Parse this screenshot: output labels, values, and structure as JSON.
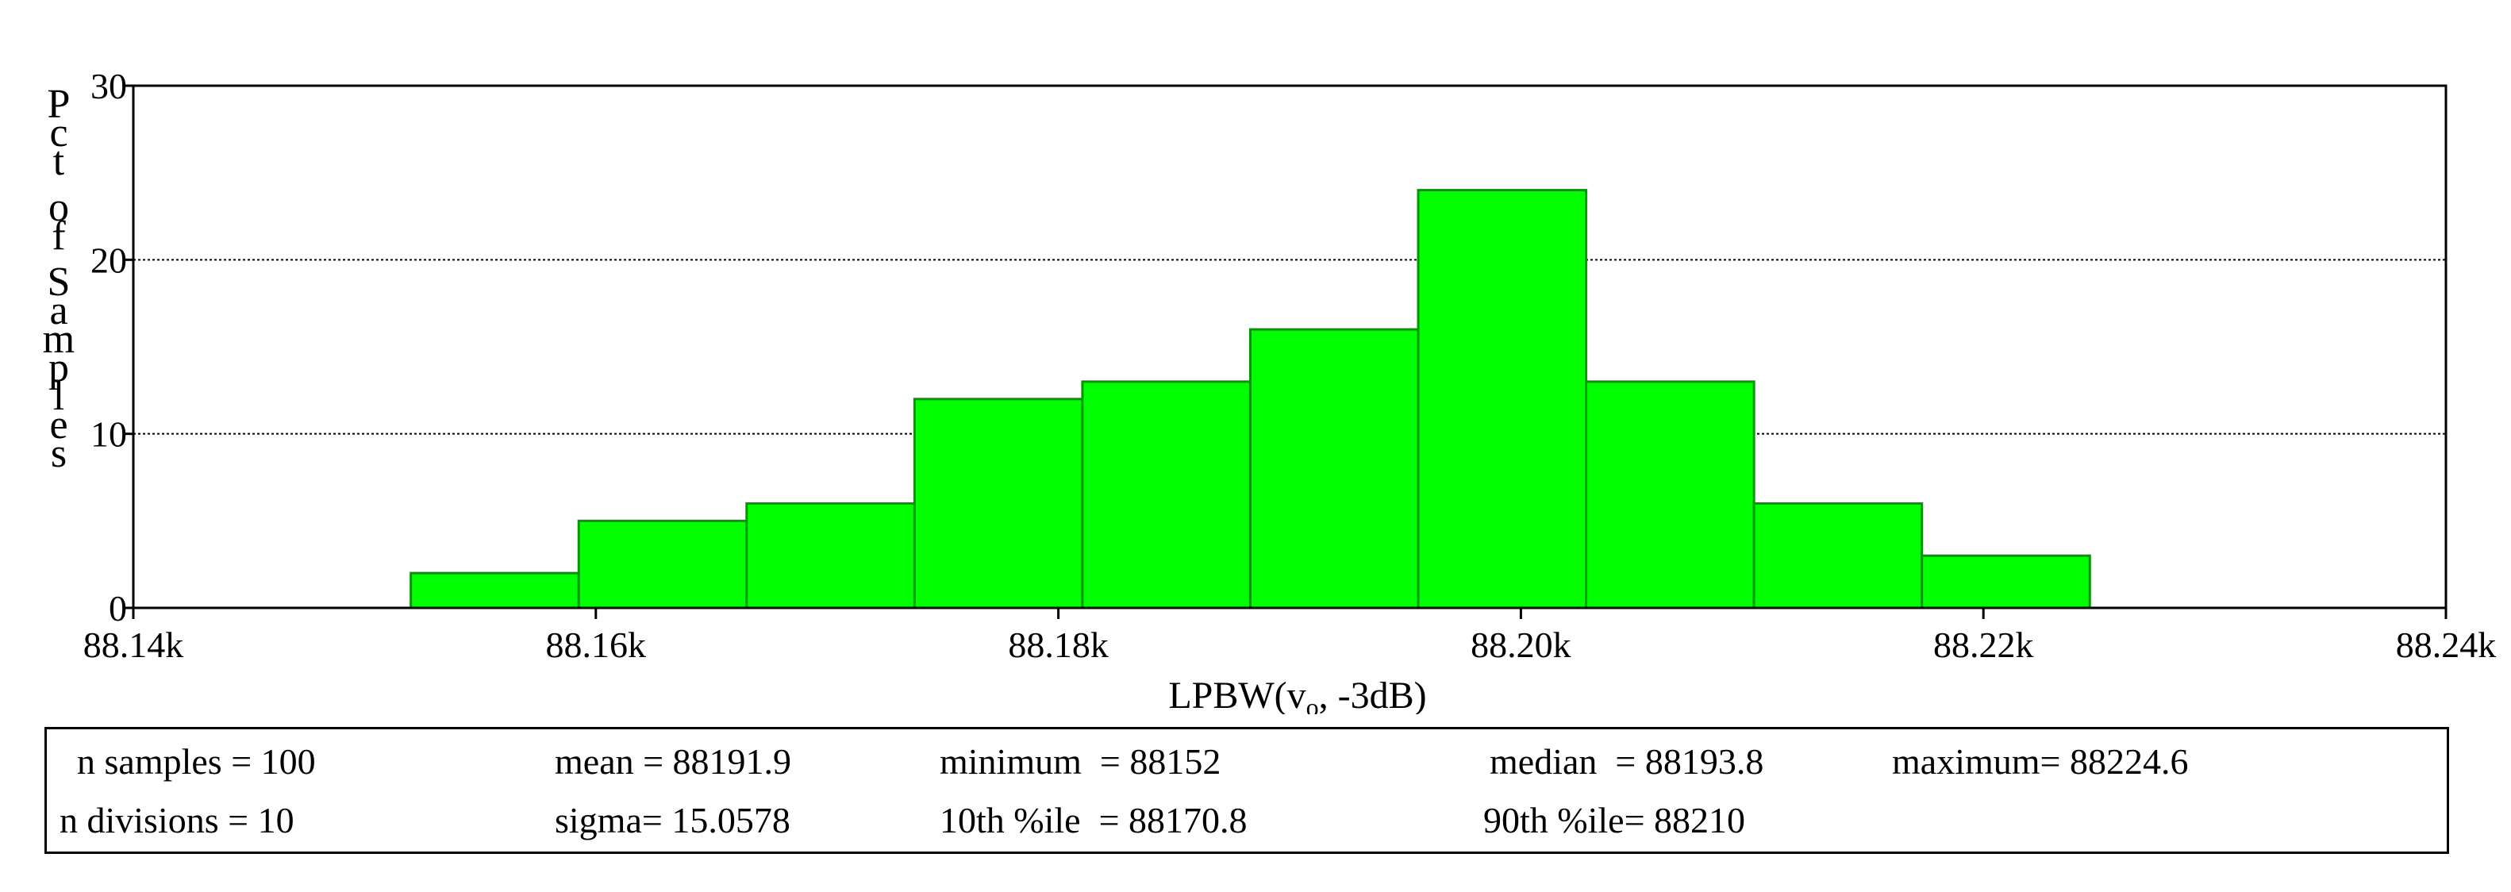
{
  "chart_data": {
    "type": "bar",
    "title": "",
    "xlabel": "LPBW(v",
    "xlabel_subscript": "o",
    "xlabel_suffix": ", -3dB)",
    "ylabel": "Pct of Samples",
    "xlim": [
      88140,
      88240
    ],
    "ylim": [
      0,
      30
    ],
    "x_ticks": [
      88140,
      88160,
      88180,
      88200,
      88220,
      88240
    ],
    "x_tick_labels": [
      "88.14k",
      "88.16k",
      "88.18k",
      "88.20k",
      "88.22k",
      "88.24k"
    ],
    "y_ticks": [
      0,
      10,
      20,
      30
    ],
    "y_tick_labels": [
      "0",
      "10",
      "20",
      "30"
    ],
    "grid": "horizontal-dotted",
    "bin_edges": [
      88152,
      88159.26,
      88166.52,
      88173.78,
      88181.04,
      88188.3,
      88195.56,
      88202.82,
      88210.08,
      88217.34,
      88224.6
    ],
    "values": [
      2,
      5,
      6,
      12,
      13,
      16,
      24,
      13,
      6,
      3
    ],
    "bar_color": "#00ff00",
    "bar_edge_color": "#009900"
  },
  "stats": {
    "n_samples": "n samples = 100",
    "mean": "mean = 88191.9",
    "minimum": "minimum  = 88152",
    "median": "median  = 88193.8",
    "maximum": "maximum= 88224.6",
    "n_divisions": "n divisions = 10",
    "sigma": "sigma= 15.0578",
    "p10": "10th %ile  = 88170.8",
    "p90": "90th %ile= 88210"
  }
}
